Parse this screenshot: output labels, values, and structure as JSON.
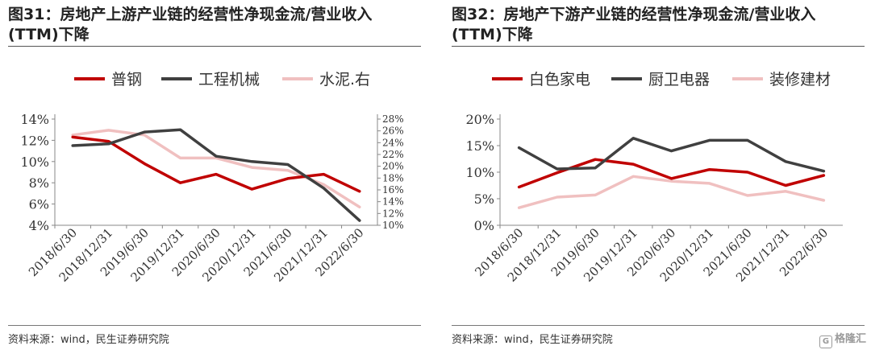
{
  "charts": [
    {
      "title": "图31：房地产上游产业链的经营性净现金流/营业收入(TTM)下降",
      "source": "资料来源：wind，民生证券研究院"
    },
    {
      "title": "图32：房地产下游产业链的经营性净现金流/营业收入(TTM)下降",
      "source": "资料来源：wind，民生证券研究院"
    }
  ],
  "watermark": "格隆汇",
  "chart_data": [
    {
      "type": "line",
      "categories": [
        "2018/6/30",
        "2018/12/31",
        "2019/6/30",
        "2019/12/31",
        "2020/6/30",
        "2020/12/31",
        "2021/6/30",
        "2021/12/31",
        "2022/6/30"
      ],
      "y_left_ticks": [
        "4%",
        "6%",
        "8%",
        "10%",
        "12%",
        "14%"
      ],
      "y_right_ticks": [
        "10%",
        "12%",
        "14%",
        "16%",
        "18%",
        "20%",
        "22%",
        "24%",
        "26%",
        "28%"
      ],
      "y_left_range": [
        4,
        14
      ],
      "y_right_range": [
        10,
        28
      ],
      "legend_position": "top",
      "grid": false,
      "series": [
        {
          "name": "普钢",
          "axis": "left",
          "color": "#c00000",
          "values": [
            12.3,
            11.9,
            9.8,
            8.0,
            8.8,
            7.4,
            8.4,
            8.8,
            7.2
          ]
        },
        {
          "name": "工程机械",
          "axis": "right",
          "color": "#404040",
          "values": [
            23.5,
            23.8,
            25.8,
            26.2,
            21.7,
            20.8,
            20.3,
            16.3,
            10.8
          ]
        },
        {
          "name": "水泥.右",
          "axis": "right",
          "color": "#f0c0c0",
          "values": [
            25.3,
            26.1,
            25.3,
            21.4,
            21.4,
            19.8,
            19.3,
            16.9,
            13.1
          ]
        }
      ]
    },
    {
      "type": "line",
      "categories": [
        "2018/6/30",
        "2018/12/31",
        "2019/6/30",
        "2019/12/31",
        "2020/6/30",
        "2020/12/31",
        "2021/6/30",
        "2021/12/31",
        "2022/6/30"
      ],
      "y_ticks": [
        "0%",
        "5%",
        "10%",
        "15%",
        "20%"
      ],
      "y_range": [
        0,
        20
      ],
      "legend_position": "top",
      "grid": false,
      "series": [
        {
          "name": "白色家电",
          "color": "#c00000",
          "values": [
            7.2,
            9.9,
            12.4,
            11.5,
            8.8,
            10.5,
            10.0,
            7.5,
            9.4
          ]
        },
        {
          "name": "厨卫电器",
          "color": "#404040",
          "values": [
            14.6,
            10.6,
            10.8,
            16.4,
            14.0,
            16.0,
            16.0,
            12.0,
            10.2
          ]
        },
        {
          "name": "装修建材",
          "color": "#f0c0c0",
          "values": [
            3.3,
            5.3,
            5.7,
            9.2,
            8.3,
            7.9,
            5.6,
            6.4,
            4.7
          ]
        }
      ]
    }
  ]
}
